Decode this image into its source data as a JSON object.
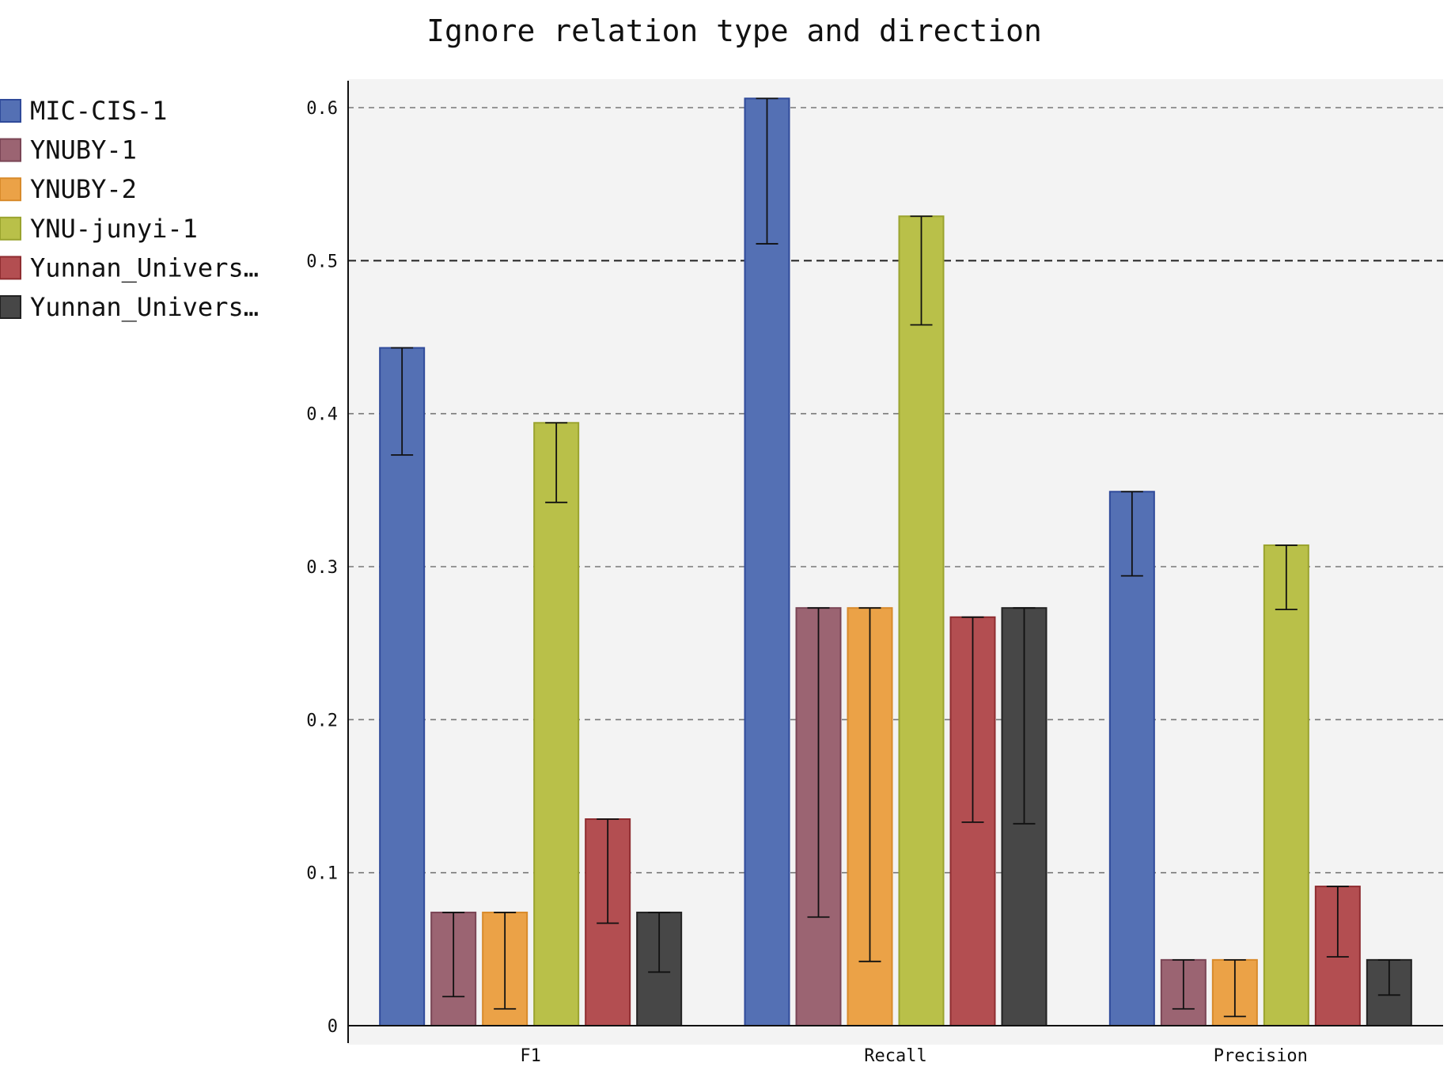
{
  "chart_data": {
    "type": "bar",
    "title": "Ignore relation type and direction",
    "xlabel": "",
    "ylabel": "",
    "categories": [
      "F1",
      "Recall",
      "Precision"
    ],
    "ylim": [
      0,
      0.62
    ],
    "yticks": [
      0,
      0.1,
      0.2,
      0.3,
      0.4,
      0.5,
      0.6
    ],
    "ytick_labels": [
      "0",
      "0.1",
      "0.2",
      "0.3",
      "0.4",
      "0.5",
      "0.6"
    ],
    "grid": true,
    "legend_position": "left",
    "series": [
      {
        "name": "MIC-CIS-1",
        "color": "#5470b4",
        "edge": "#2f4a9a",
        "values": [
          0.443,
          0.606,
          0.349
        ],
        "err_low": [
          0.373,
          0.511,
          0.294
        ],
        "err_high": [
          0.443,
          0.606,
          0.349
        ]
      },
      {
        "name": "YNUBY-1",
        "color": "#9b6472",
        "edge": "#7a4555",
        "values": [
          0.074,
          0.273,
          0.043
        ],
        "err_low": [
          0.019,
          0.071,
          0.011
        ],
        "err_high": [
          0.074,
          0.273,
          0.043
        ]
      },
      {
        "name": "YNUBY-2",
        "color": "#eba247",
        "edge": "#d88a2a",
        "values": [
          0.074,
          0.273,
          0.043
        ],
        "err_low": [
          0.011,
          0.042,
          0.006
        ],
        "err_high": [
          0.074,
          0.273,
          0.043
        ]
      },
      {
        "name": "YNU-junyi-1",
        "color": "#b9c049",
        "edge": "#9aa32e",
        "values": [
          0.394,
          0.529,
          0.314
        ],
        "err_low": [
          0.342,
          0.458,
          0.272
        ],
        "err_high": [
          0.394,
          0.529,
          0.314
        ]
      },
      {
        "name": "Yunnan_Univers…",
        "color": "#b34e51",
        "edge": "#8f2d31",
        "values": [
          0.135,
          0.267,
          0.091
        ],
        "err_low": [
          0.067,
          0.133,
          0.045
        ],
        "err_high": [
          0.135,
          0.267,
          0.091
        ]
      },
      {
        "name": "Yunnan_Univers…",
        "color": "#474747",
        "edge": "#222222",
        "values": [
          0.074,
          0.273,
          0.043
        ],
        "err_low": [
          0.035,
          0.132,
          0.02
        ],
        "err_high": [
          0.074,
          0.273,
          0.043
        ]
      }
    ]
  }
}
